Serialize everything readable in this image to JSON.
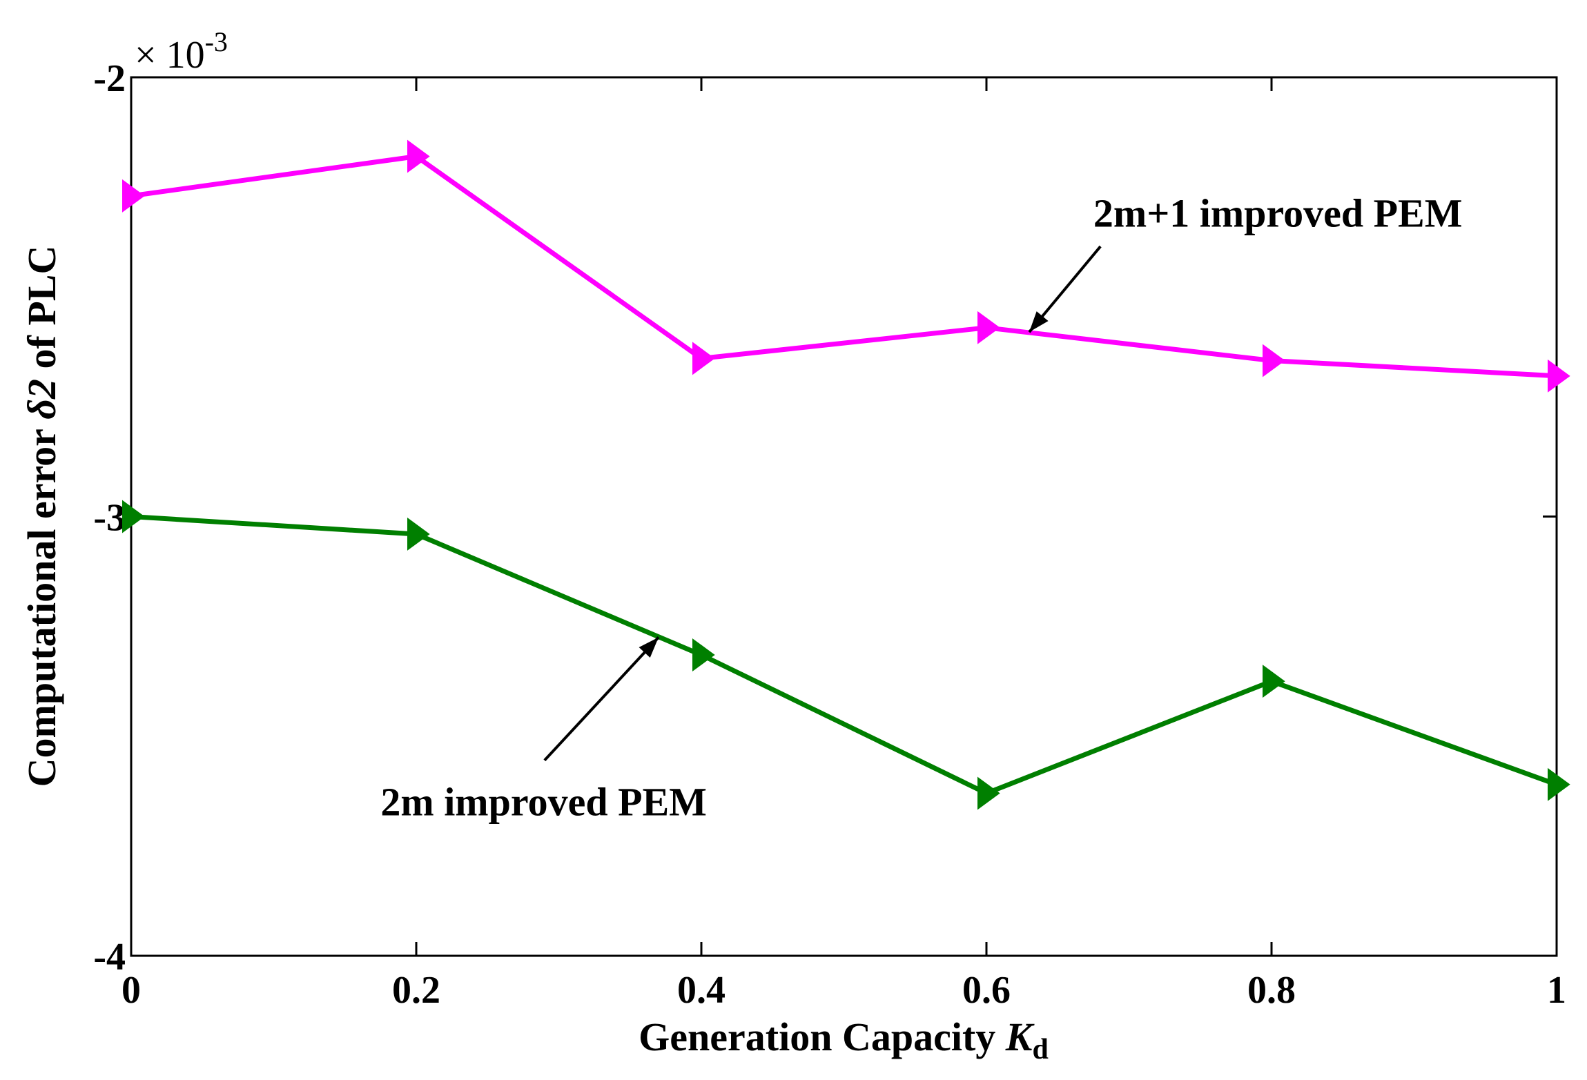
{
  "chart_data": {
    "type": "line",
    "title": "",
    "xlabel": "Generation Capacity ",
    "xlabel_italic": "K",
    "xlabel_sub": "d",
    "ylabel_prefix": "Computational error ",
    "ylabel_italic": "δ2",
    "ylabel_suffix": " of PLC",
    "y_multiplier": "× 10",
    "y_multiplier_exp": "-3",
    "xlim": [
      0,
      1
    ],
    "ylim": [
      -4,
      -2
    ],
    "x_ticks": [
      0,
      0.2,
      0.4,
      0.6,
      0.8,
      1
    ],
    "x_tick_labels": [
      "0",
      "0.2",
      "0.4",
      "0.6",
      "0.8",
      "1"
    ],
    "y_ticks": [
      -2,
      -3,
      -4
    ],
    "y_tick_labels": [
      "-2",
      "-3",
      "-4"
    ],
    "grid": false,
    "x": [
      0,
      0.2,
      0.4,
      0.6,
      0.8,
      1
    ],
    "series": [
      {
        "name": "2m+1 improved PEM",
        "color": "#ff00ff",
        "marker": "triangle-right",
        "values": [
          -2.27,
          -2.18,
          -2.64,
          -2.57,
          -2.645,
          -2.68
        ]
      },
      {
        "name": "2m improved PEM",
        "color": "#007f00",
        "marker": "triangle-right",
        "values": [
          -3.0,
          -3.04,
          -3.315,
          -3.63,
          -3.375,
          -3.61
        ]
      }
    ],
    "annotations": [
      {
        "text": "2m+1 improved PEM",
        "series": 0,
        "arrow_x": 0.63,
        "arrow_y": -2.58,
        "text_x": 0.675,
        "text_y": -2.34,
        "tail_x": 0.68,
        "tail_y": -2.385
      },
      {
        "text": "2m improved PEM",
        "series": 1,
        "arrow_x": 0.37,
        "arrow_y": -3.275,
        "text_x": 0.175,
        "text_y": -3.68,
        "tail_x": 0.29,
        "tail_y": -3.555
      }
    ]
  }
}
